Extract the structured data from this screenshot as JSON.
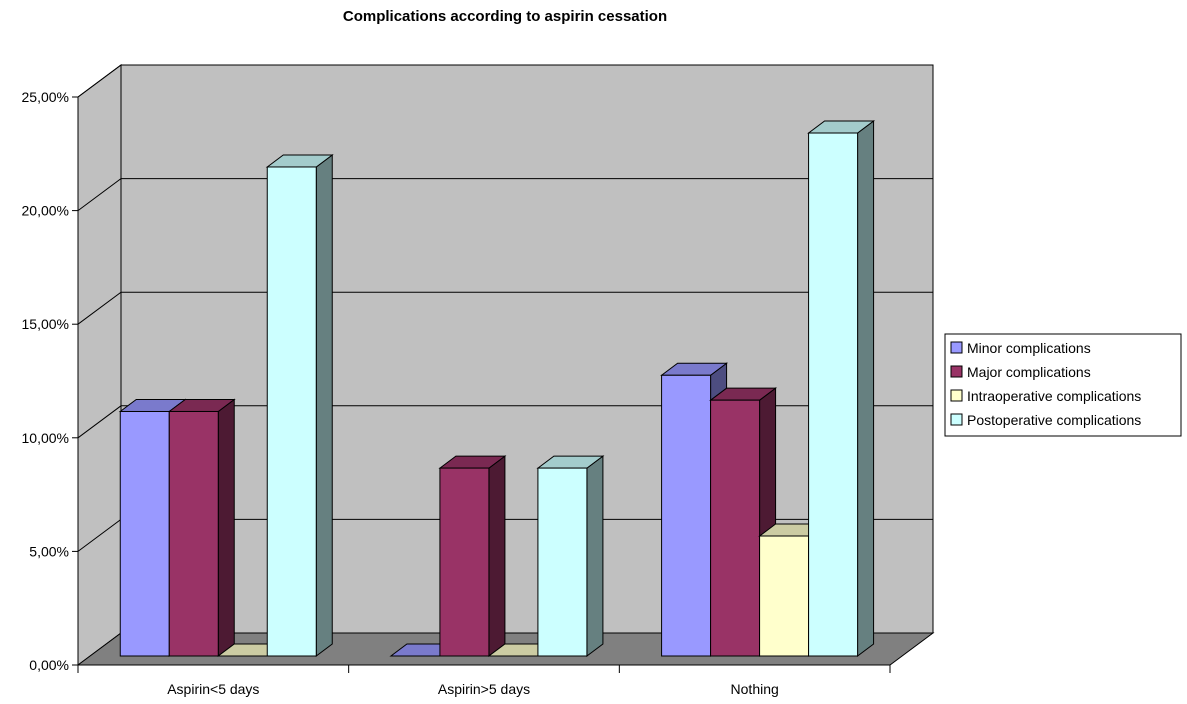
{
  "chart_data": {
    "type": "bar",
    "title": "Complications according to aspirin cessation",
    "xlabel": "",
    "ylabel": "",
    "categories": [
      "Aspirin<5 days",
      "Aspirin>5 days",
      "Nothing"
    ],
    "series": [
      {
        "name": "Minor complications",
        "values": [
          10.8,
          0.0,
          12.4
        ],
        "color": "#9999ff"
      },
      {
        "name": "Major complications",
        "values": [
          10.8,
          8.3,
          11.3
        ],
        "color": "#993366"
      },
      {
        "name": "Intraoperative complications",
        "values": [
          0.0,
          0.0,
          5.3
        ],
        "color": "#ffffcc"
      },
      {
        "name": "Postoperative complications",
        "values": [
          21.6,
          8.3,
          23.1
        ],
        "color": "#ccffff"
      }
    ],
    "ylim": [
      0,
      25
    ],
    "yticks": [
      "0,00%",
      "5,00%",
      "10,00%",
      "15,00%",
      "20,00%",
      "25,00%"
    ],
    "grid": true,
    "legend_position": "right",
    "wall_color": "#c0c0c0",
    "floor_color": "#808080"
  }
}
